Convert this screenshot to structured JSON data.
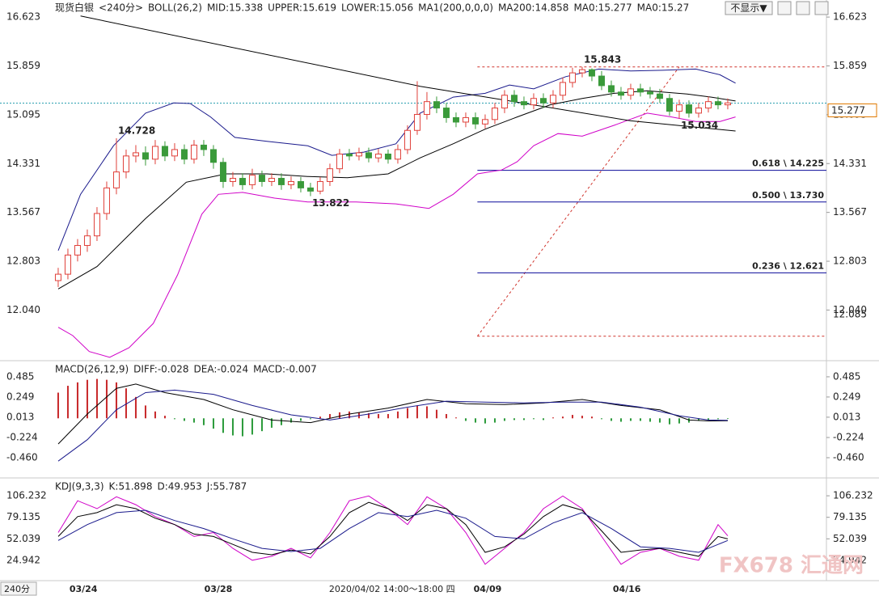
{
  "chart_data": [
    {
      "type": "candlestick",
      "header": [
        {
          "text": "现货白银",
          "color": "#000000"
        },
        {
          "text": "<240分>",
          "color": "#e07a00"
        },
        {
          "text": "BOLL(26,2)",
          "color": "#000000"
        },
        {
          "text": "MID:15.338",
          "color": "#000000"
        },
        {
          "text": "UPPER:15.619",
          "color": "#1a1a8c"
        },
        {
          "text": "LOWER:15.056",
          "color": "#d000c8"
        },
        {
          "text": "MA1(200,0,0,0)",
          "color": "#000000"
        },
        {
          "text": "MA200:14.858",
          "color": "#000000"
        },
        {
          "text": "MA0:15.277",
          "color": "#1a1a8c"
        },
        {
          "text": "MA0:15.27",
          "color": "#d000c8"
        }
      ],
      "xlim": [
        -0.58,
        79.17
      ],
      "ylim": [
        11.26,
        16.89
      ],
      "yticks": [
        16.623,
        15.859,
        15.095,
        14.331,
        13.567,
        12.803,
        {
          "value": 12.04,
          "label": "12.040"
        }
      ],
      "up_color": "#e0403a",
      "down_color": "#3a9a3a",
      "open": [
        12.5,
        12.6,
        12.9,
        13.05,
        13.2,
        13.55,
        13.95,
        14.2,
        14.45,
        14.5,
        14.4,
        14.6,
        14.45,
        14.55,
        14.4,
        14.62,
        14.55,
        14.35,
        14.05,
        14.1,
        14.0,
        14.15,
        14.05,
        14.1,
        14.0,
        14.05,
        13.95,
        13.9,
        14.05,
        14.25,
        14.48,
        14.45,
        14.5,
        14.42,
        14.48,
        14.4,
        14.55,
        14.85,
        15.1,
        15.3,
        15.2,
        15.05,
        14.98,
        15.05,
        14.95,
        15.02,
        15.2,
        15.4,
        15.3,
        15.25,
        15.35,
        15.28,
        15.4,
        15.6,
        15.75,
        15.8,
        15.7,
        15.55,
        15.45,
        15.4,
        15.5,
        15.45,
        15.42,
        15.35,
        15.15,
        15.25,
        15.12,
        15.2,
        15.3,
        15.25
      ],
      "high": [
        12.7,
        13.0,
        13.15,
        13.3,
        13.65,
        14.05,
        14.728,
        14.55,
        14.62,
        14.6,
        14.7,
        14.68,
        14.65,
        14.63,
        14.7,
        14.7,
        14.62,
        14.42,
        14.2,
        14.18,
        14.25,
        14.22,
        14.18,
        14.18,
        14.13,
        14.12,
        14.03,
        14.12,
        14.33,
        14.56,
        14.56,
        14.58,
        14.58,
        14.56,
        14.55,
        14.63,
        14.93,
        15.62,
        15.45,
        15.38,
        15.28,
        15.13,
        15.13,
        15.13,
        15.1,
        15.28,
        15.48,
        15.48,
        15.38,
        15.43,
        15.43,
        15.48,
        15.68,
        15.83,
        15.843,
        15.82,
        15.78,
        15.63,
        15.53,
        15.58,
        15.58,
        15.53,
        15.5,
        15.42,
        15.33,
        15.32,
        15.28,
        15.38,
        15.38,
        15.35
      ],
      "low": [
        12.4,
        12.52,
        12.8,
        12.95,
        13.12,
        13.45,
        13.85,
        14.1,
        14.35,
        14.3,
        14.32,
        14.37,
        14.37,
        14.32,
        14.33,
        14.45,
        14.25,
        13.95,
        13.97,
        13.92,
        13.93,
        13.97,
        13.98,
        13.92,
        13.93,
        13.88,
        13.822,
        13.85,
        13.98,
        14.18,
        14.38,
        14.38,
        14.35,
        14.35,
        14.33,
        14.33,
        14.48,
        14.78,
        15.02,
        15.12,
        14.97,
        14.9,
        14.9,
        14.87,
        14.88,
        14.95,
        15.12,
        15.22,
        15.18,
        15.18,
        15.2,
        15.2,
        15.32,
        15.52,
        15.68,
        15.62,
        15.48,
        15.38,
        15.33,
        15.33,
        15.38,
        15.35,
        15.28,
        15.08,
        15.034,
        15.05,
        15.05,
        15.13,
        15.18,
        15.18
      ],
      "close": [
        12.6,
        12.9,
        13.05,
        13.2,
        13.55,
        13.95,
        14.2,
        14.45,
        14.5,
        14.4,
        14.6,
        14.45,
        14.55,
        14.4,
        14.62,
        14.55,
        14.35,
        14.05,
        14.1,
        14.0,
        14.15,
        14.05,
        14.1,
        14.0,
        14.05,
        13.95,
        13.9,
        14.05,
        14.25,
        14.48,
        14.45,
        14.5,
        14.42,
        14.48,
        14.4,
        14.55,
        14.85,
        15.1,
        15.3,
        15.2,
        15.05,
        14.98,
        15.05,
        14.95,
        15.02,
        15.2,
        15.4,
        15.3,
        15.25,
        15.35,
        15.28,
        15.4,
        15.6,
        15.75,
        15.8,
        15.7,
        15.55,
        15.45,
        15.4,
        15.5,
        15.45,
        15.42,
        15.35,
        15.15,
        15.25,
        15.12,
        15.2,
        15.3,
        15.25,
        15.28
      ],
      "series": [
        {
          "color": "#000000",
          "x": [
            0,
            4,
            9,
            13.2,
            17.3,
            21.5,
            25.7,
            29.8,
            34,
            37.3,
            40.7,
            44,
            47.3,
            50.7,
            54,
            57.3,
            60.7,
            64.8,
            67.3,
            69.8
          ],
          "values": [
            12.37,
            12.72,
            13.47,
            14.04,
            14.17,
            14.17,
            14.13,
            14.11,
            14.17,
            14.42,
            14.64,
            14.87,
            15.06,
            15.25,
            15.35,
            15.43,
            15.47,
            15.42,
            15.37,
            15.31
          ]
        },
        {
          "color": "#1a1a8c",
          "x": [
            0,
            2.3,
            5.7,
            9,
            11.9,
            13.6,
            15.7,
            18.2,
            21.5,
            25.7,
            28.2,
            31.5,
            34.8,
            37.3,
            40.7,
            44,
            46.5,
            49,
            52.3,
            55.7,
            59,
            62.3,
            65.7,
            68.2,
            69.8
          ],
          "values": [
            12.97,
            13.85,
            14.61,
            15.12,
            15.28,
            15.27,
            15.06,
            14.74,
            14.68,
            14.61,
            14.46,
            14.51,
            14.64,
            15.12,
            15.37,
            15.43,
            15.56,
            15.5,
            15.69,
            15.81,
            15.78,
            15.79,
            15.81,
            15.72,
            15.59
          ]
        },
        {
          "color": "#d000c8",
          "x": [
            0,
            1.5,
            3.2,
            5.3,
            7.3,
            9.8,
            12.3,
            14.8,
            16.5,
            19,
            22.3,
            25.7,
            30.7,
            34.8,
            38.2,
            40.7,
            43.2,
            45.7,
            47.3,
            49,
            51.5,
            54,
            57.3,
            60.7,
            63.2,
            65.7,
            68.2,
            69.8
          ],
          "values": [
            11.77,
            11.64,
            11.39,
            11.3,
            11.45,
            11.83,
            12.59,
            13.54,
            13.85,
            13.88,
            13.79,
            13.73,
            13.73,
            13.7,
            13.63,
            13.85,
            14.17,
            14.23,
            14.36,
            14.61,
            14.8,
            14.76,
            14.93,
            15.12,
            15.06,
            14.99,
            14.99,
            15.06
          ]
        },
        {
          "color": "#000000",
          "x": [
            2.3,
            37.3,
            59,
            69.8
          ],
          "values": [
            16.64,
            15.54,
            15.0,
            14.84
          ]
        }
      ],
      "annotations": [
        {
          "value": 14.728,
          "label": "14.728",
          "x": 6,
          "color": "#d0342c",
          "side": "above"
        },
        {
          "value": 13.822,
          "label": "13.822",
          "x": 26,
          "color": "#5f9a6a",
          "side": "below"
        },
        {
          "value": 15.843,
          "label": "15.843",
          "x": 54,
          "color": "#d0342c",
          "side": "above"
        },
        {
          "value": 15.034,
          "label": "15.034",
          "x": 64,
          "color": "#3a8a4a",
          "side": "below"
        }
      ],
      "fib": {
        "x0": 43.2,
        "x1": 64,
        "high": 15.843,
        "low": 11.63,
        "color": "#d0342c",
        "level_color": "#0a0a9a",
        "levels": [
          {
            "value": 14.225,
            "label": "0.618 \\ 14.225"
          },
          {
            "value": 13.73,
            "label": "0.500 \\ 13.730"
          },
          {
            "value": 12.621,
            "label": "0.236 \\ 12.621"
          }
        ]
      },
      "current_price": 15.277,
      "current_color": "#2aa0b0",
      "tag_color": "#e07a00",
      "price_tags": [
        12.085
      ]
    },
    {
      "type": "macd",
      "header": [
        {
          "text": "MACD(26,12,9)",
          "color": "#000000"
        },
        {
          "text": "DIFF:-0.028",
          "color": "#000000"
        },
        {
          "text": "DEA:-0.024",
          "color": "#1a1a8c"
        },
        {
          "text": "MACD:-0.007",
          "color": "#d000c8"
        }
      ],
      "xlim": [
        -0.58,
        79.17
      ],
      "ylim": [
        -0.687,
        0.664
      ],
      "yticks": [
        0.485,
        0.249,
        0.013,
        -0.224,
        {
          "value": -0.46,
          "label": "-0.460"
        }
      ],
      "up_color": "#c8282a",
      "down_color": "#2a9a3a",
      "histogram": [
        0.3,
        0.38,
        0.42,
        0.45,
        0.46,
        0.45,
        0.42,
        0.35,
        0.25,
        0.15,
        0.08,
        0.03,
        -0.01,
        -0.03,
        -0.05,
        -0.08,
        -0.12,
        -0.17,
        -0.2,
        -0.21,
        -0.19,
        -0.15,
        -0.11,
        -0.08,
        -0.05,
        -0.03,
        -0.01,
        0.02,
        0.05,
        0.07,
        0.08,
        0.07,
        0.06,
        0.05,
        0.05,
        0.08,
        0.12,
        0.15,
        0.14,
        0.1,
        0.05,
        0.01,
        -0.03,
        -0.05,
        -0.06,
        -0.05,
        -0.03,
        -0.02,
        -0.02,
        -0.01,
        -0.02,
        0.01,
        0.02,
        0.04,
        0.03,
        0.02,
        -0.01,
        -0.03,
        -0.04,
        -0.03,
        -0.03,
        -0.04,
        -0.05,
        -0.07,
        -0.06,
        -0.05,
        -0.03,
        -0.02,
        -0.01,
        -0.007
      ],
      "series": [
        {
          "color": "#000000",
          "x": [
            0,
            3,
            6,
            8,
            11,
            15,
            18,
            22,
            26,
            30,
            34,
            38,
            42,
            46,
            50,
            54,
            58,
            62,
            65,
            67,
            69
          ],
          "values": [
            -0.3,
            0.05,
            0.35,
            0.4,
            0.3,
            0.22,
            0.1,
            -0.02,
            -0.05,
            0.05,
            0.12,
            0.22,
            0.17,
            0.16,
            0.18,
            0.22,
            0.15,
            0.1,
            -0.02,
            -0.03,
            -0.028
          ]
        },
        {
          "color": "#1a1a8c",
          "x": [
            0,
            3,
            6,
            9,
            12,
            16,
            20,
            24,
            28,
            32,
            36,
            40,
            44,
            48,
            52,
            56,
            60,
            64,
            67,
            69
          ],
          "values": [
            -0.5,
            -0.25,
            0.1,
            0.3,
            0.33,
            0.28,
            0.15,
            0.04,
            -0.02,
            0.05,
            0.13,
            0.2,
            0.19,
            0.18,
            0.19,
            0.19,
            0.13,
            0.03,
            -0.02,
            -0.024
          ]
        }
      ]
    },
    {
      "type": "kdj",
      "header": [
        {
          "text": "KDJ(9,3,3)",
          "color": "#000000"
        },
        {
          "text": "K:51.898",
          "color": "#000000"
        },
        {
          "text": "D:49.953",
          "color": "#1a1a8c"
        },
        {
          "text": "J:55.787",
          "color": "#d000c8"
        }
      ],
      "xlim": [
        -0.58,
        79.17
      ],
      "ylim": [
        -0.62,
        127.7
      ],
      "yticks": [
        106.232,
        79.135,
        52.039,
        24.942
      ],
      "series": [
        {
          "color": "#d000c8",
          "x": [
            0,
            2,
            4,
            6,
            8,
            10,
            12,
            14,
            16,
            18,
            20,
            22,
            24,
            26,
            28,
            30,
            32,
            34,
            36,
            38,
            40,
            42,
            44,
            46,
            48,
            50,
            52,
            54,
            56,
            58,
            60,
            62,
            64,
            66,
            68,
            69
          ],
          "values": [
            60,
            100,
            90,
            105,
            95,
            80,
            70,
            55,
            60,
            40,
            25,
            30,
            40,
            28,
            60,
            100,
            106,
            90,
            70,
            105,
            90,
            60,
            20,
            40,
            60,
            90,
            106,
            90,
            55,
            20,
            35,
            40,
            30,
            25,
            70,
            55.787
          ]
        },
        {
          "color": "#000000",
          "x": [
            0,
            2,
            4,
            6,
            8,
            10,
            12,
            14,
            16,
            18,
            20,
            22,
            24,
            26,
            28,
            30,
            32,
            34,
            36,
            38,
            40,
            42,
            44,
            46,
            48,
            50,
            52,
            54,
            56,
            58,
            60,
            62,
            64,
            66,
            68,
            69
          ],
          "values": [
            55,
            80,
            85,
            95,
            90,
            78,
            70,
            58,
            55,
            45,
            35,
            32,
            38,
            33,
            55,
            85,
            98,
            90,
            75,
            95,
            90,
            70,
            35,
            42,
            58,
            80,
            95,
            88,
            62,
            35,
            38,
            40,
            35,
            30,
            55,
            51.898
          ]
        },
        {
          "color": "#1a1a8c",
          "x": [
            0,
            3,
            6,
            9,
            12,
            15,
            18,
            21,
            24,
            27,
            30,
            33,
            36,
            39,
            42,
            45,
            48,
            51,
            54,
            57,
            60,
            63,
            66,
            68,
            69
          ],
          "values": [
            50,
            70,
            85,
            88,
            75,
            65,
            52,
            40,
            36,
            40,
            65,
            85,
            80,
            88,
            78,
            55,
            52,
            72,
            85,
            65,
            42,
            40,
            35,
            45,
            49.953
          ]
        }
      ],
      "xticks": [
        {
          "value": 2.6,
          "label": "03/24"
        },
        {
          "value": 16.5,
          "label": "03/28"
        },
        {
          "value": 44.25,
          "label": "04/09"
        },
        {
          "value": 58.6,
          "label": "04/16"
        }
      ],
      "cursor_label": {
        "value": 34.4,
        "label": "2020/04/02 14:00～18:00 四"
      },
      "period": "240分"
    }
  ],
  "toolbar": {
    "button": "不显示▼"
  },
  "watermark": "FX678 汇通网"
}
